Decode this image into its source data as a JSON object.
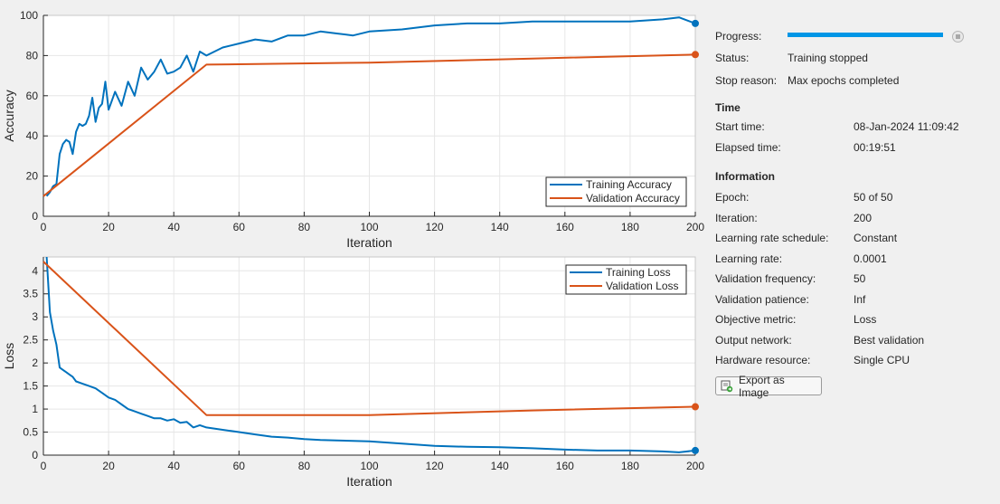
{
  "side": {
    "progress_label": "Progress:",
    "progress_value": 1.0,
    "status_label": "Status:",
    "status_value": "Training stopped",
    "stop_reason_label": "Stop reason:",
    "stop_reason_value": "Max epochs completed",
    "time_header": "Time",
    "start_time_label": "Start time:",
    "start_time_value": "08-Jan-2024 11:09:42",
    "elapsed_label": "Elapsed time:",
    "elapsed_value": "00:19:51",
    "info_header": "Information",
    "info": [
      {
        "label": "Epoch:",
        "value": "50 of 50"
      },
      {
        "label": "Iteration:",
        "value": "200"
      },
      {
        "label": "Learning rate schedule:",
        "value": "Constant"
      },
      {
        "label": "Learning rate:",
        "value": "0.0001"
      },
      {
        "label": "Validation frequency:",
        "value": "50"
      },
      {
        "label": "Validation patience:",
        "value": "Inf"
      },
      {
        "label": "Objective metric:",
        "value": "Loss"
      },
      {
        "label": "Output network:",
        "value": "Best validation"
      },
      {
        "label": "Hardware resource:",
        "value": "Single CPU"
      }
    ],
    "export_label": "Export as Image"
  },
  "chart_data": [
    {
      "type": "line",
      "xlabel": "Iteration",
      "ylabel": "Accuracy",
      "xlim": [
        0,
        200
      ],
      "ylim": [
        0,
        100
      ],
      "xticks": [
        0,
        20,
        40,
        60,
        80,
        100,
        120,
        140,
        160,
        180,
        200
      ],
      "yticks": [
        0,
        20,
        40,
        60,
        80,
        100
      ],
      "ytick_labels": [
        "0",
        "20",
        "40",
        "60",
        "80",
        "100"
      ],
      "grid": true,
      "legend": "bottom-right",
      "series": [
        {
          "name": "Training Accuracy",
          "color": "#0072bd",
          "x": [
            1,
            2,
            3,
            4,
            5,
            6,
            7,
            8,
            9,
            10,
            11,
            12,
            13,
            14,
            15,
            16,
            17,
            18,
            19,
            20,
            22,
            24,
            26,
            28,
            30,
            32,
            34,
            36,
            38,
            40,
            42,
            44,
            46,
            48,
            50,
            55,
            60,
            65,
            70,
            75,
            80,
            85,
            90,
            95,
            100,
            110,
            120,
            130,
            140,
            150,
            160,
            170,
            180,
            190,
            195,
            200
          ],
          "y": [
            10,
            12,
            15,
            16,
            31,
            36,
            38,
            37,
            31,
            42,
            46,
            45,
            46,
            50,
            59,
            47,
            54,
            56,
            67,
            53,
            62,
            55,
            67,
            60,
            74,
            68,
            72,
            78,
            71,
            72,
            74,
            80,
            72,
            82,
            80,
            84,
            86,
            88,
            87,
            90,
            90,
            92,
            91,
            90,
            92,
            93,
            95,
            96,
            96,
            97,
            97,
            97,
            97,
            98,
            99,
            96
          ]
        },
        {
          "name": "Validation Accuracy",
          "color": "#d95319",
          "x": [
            0,
            50,
            100,
            150,
            200
          ],
          "y": [
            10,
            75.5,
            76.5,
            78.5,
            80.5
          ]
        }
      ]
    },
    {
      "type": "line",
      "xlabel": "Iteration",
      "ylabel": "Loss",
      "xlim": [
        0,
        200
      ],
      "ylim": [
        0,
        4.3
      ],
      "xticks": [
        0,
        20,
        40,
        60,
        80,
        100,
        120,
        140,
        160,
        180,
        200
      ],
      "yticks": [
        0,
        0.5,
        1,
        1.5,
        2,
        2.5,
        3,
        3.5,
        4
      ],
      "ytick_labels": [
        "0",
        "0.5",
        "1",
        "1.5",
        "2",
        "2.5",
        "3",
        "3.5",
        "4"
      ],
      "grid": true,
      "legend": "top-right",
      "series": [
        {
          "name": "Training Loss",
          "color": "#0072bd",
          "x": [
            1,
            2,
            3,
            4,
            5,
            6,
            7,
            8,
            9,
            10,
            12,
            14,
            16,
            18,
            20,
            22,
            24,
            26,
            28,
            30,
            32,
            34,
            36,
            38,
            40,
            42,
            44,
            46,
            48,
            50,
            55,
            60,
            65,
            70,
            75,
            80,
            85,
            90,
            100,
            110,
            120,
            130,
            140,
            150,
            160,
            170,
            180,
            190,
            195,
            200
          ],
          "y": [
            4.3,
            3.1,
            2.7,
            2.4,
            1.9,
            1.85,
            1.8,
            1.75,
            1.7,
            1.6,
            1.55,
            1.5,
            1.45,
            1.35,
            1.25,
            1.2,
            1.1,
            1.0,
            0.95,
            0.9,
            0.85,
            0.8,
            0.8,
            0.75,
            0.78,
            0.7,
            0.72,
            0.6,
            0.65,
            0.6,
            0.55,
            0.5,
            0.45,
            0.4,
            0.38,
            0.35,
            0.33,
            0.32,
            0.3,
            0.25,
            0.2,
            0.18,
            0.17,
            0.15,
            0.12,
            0.1,
            0.1,
            0.08,
            0.06,
            0.1
          ]
        },
        {
          "name": "Validation Loss",
          "color": "#d95319",
          "x": [
            0,
            50,
            100,
            150,
            200
          ],
          "y": [
            4.2,
            0.87,
            0.87,
            0.97,
            1.05
          ]
        }
      ]
    }
  ]
}
